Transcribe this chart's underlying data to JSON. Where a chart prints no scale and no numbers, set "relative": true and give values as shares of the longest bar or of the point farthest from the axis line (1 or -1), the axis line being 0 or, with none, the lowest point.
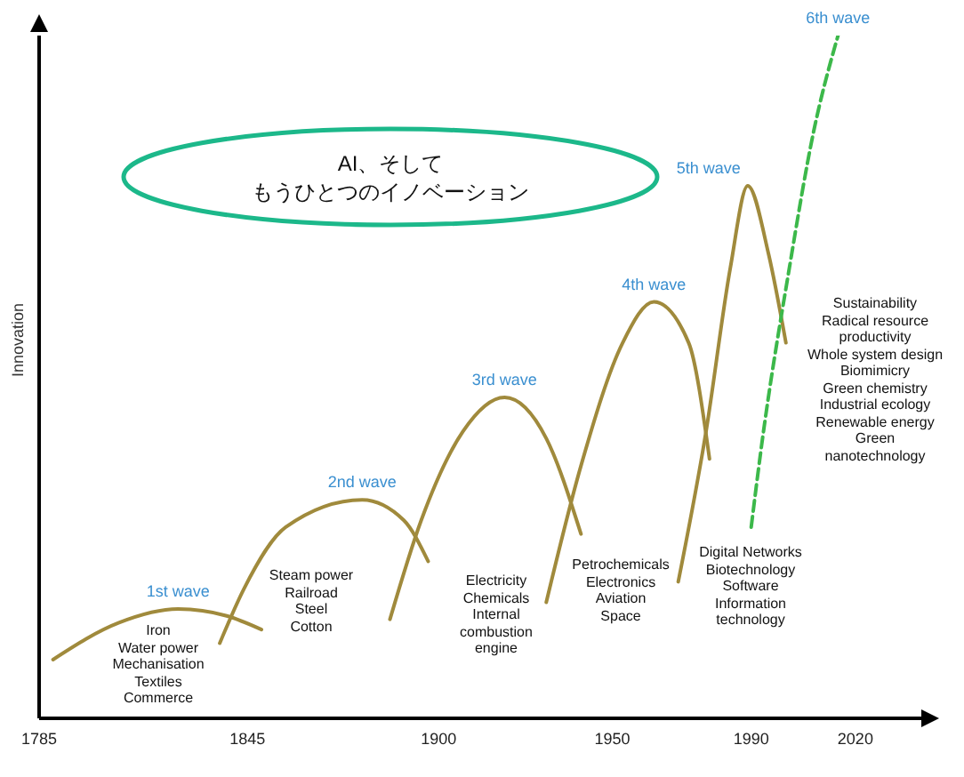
{
  "chart_data": {
    "type": "line",
    "relative": true,
    "ylabel": "Innovation",
    "xlim": [
      1785,
      2040
    ],
    "xticks": [
      1785,
      1845,
      1900,
      1950,
      1990,
      2020
    ],
    "grid": false,
    "legend": false,
    "series": [
      {
        "name": "1st wave",
        "color": "#a08a3c",
        "x": [
          1789,
          1808,
          1825,
          1839,
          1849
        ],
        "values": [
          0.086,
          0.14,
          0.16,
          0.15,
          0.13
        ]
      },
      {
        "name": "2nd wave",
        "color": "#a08a3c",
        "x": [
          1837,
          1844,
          1856,
          1878,
          1890,
          1897
        ],
        "values": [
          0.11,
          0.19,
          0.28,
          0.32,
          0.29,
          0.23
        ]
      },
      {
        "name": "3rd wave",
        "color": "#a08a3c",
        "x": [
          1886,
          1895,
          1907,
          1919,
          1931,
          1941
        ],
        "values": [
          0.145,
          0.29,
          0.42,
          0.47,
          0.41,
          0.27
        ]
      },
      {
        "name": "4th wave",
        "color": "#a08a3c",
        "x": [
          1931,
          1941,
          1953,
          1962,
          1972,
          1978
        ],
        "values": [
          0.17,
          0.37,
          0.55,
          0.61,
          0.55,
          0.38
        ]
      },
      {
        "name": "5th wave",
        "color": "#a08a3c",
        "x": [
          1969,
          1977,
          1984,
          1989,
          1995,
          2000
        ],
        "values": [
          0.2,
          0.42,
          0.66,
          0.78,
          0.68,
          0.55
        ]
      },
      {
        "name": "6th wave",
        "color": "#3cb84a",
        "line_style": "dashed",
        "x": [
          1990,
          1993,
          2001,
          2008,
          2015
        ],
        "values": [
          0.28,
          0.4,
          0.66,
          0.86,
          1.0
        ]
      }
    ],
    "annotations": [
      "AI、そして",
      "もうひとつのイノベーション",
      "Iron\nWater power\nMechanisation\nTextiles\nCommerce",
      "Steam power\nRailroad\nSteel\nCotton",
      "Electricity\nChemicals\nInternal\ncombustion\nengine",
      "Petrochemicals\nElectronics\nAviation\nSpace",
      "Digital Networks\nBiotechnology\nSoftware\nInformation\ntechnology",
      "Sustainability\nRadical resource\nproductivity\nWhole system design\nBiomimicry\nGreen chemistry\nIndustrial ecology\nRenewable energy\nGreen\nnanotechnology"
    ]
  }
}
